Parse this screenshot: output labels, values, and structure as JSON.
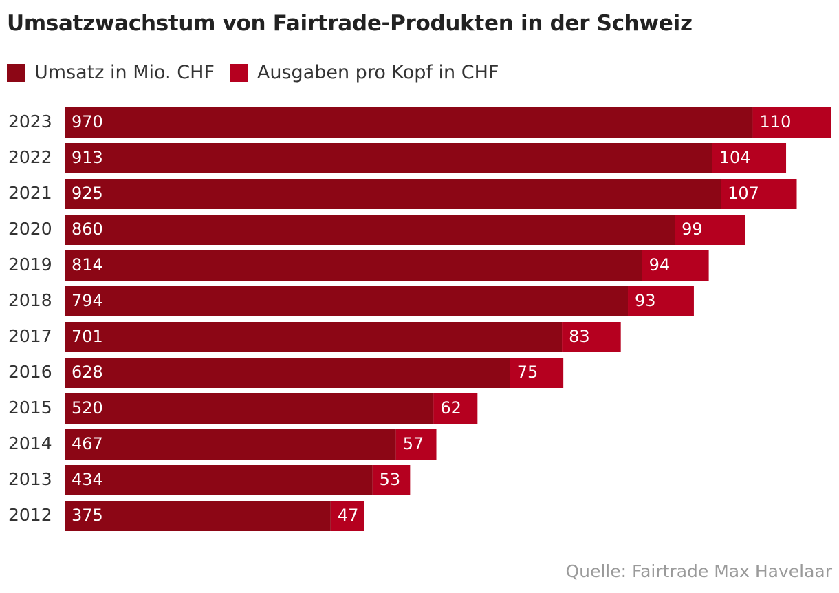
{
  "title": "Umsatzwachstum von Fairtrade-Produkten in der Schweiz",
  "legend": [
    {
      "label": "Umsatz in Mio. CHF",
      "color": "#8c0615"
    },
    {
      "label": "Ausgaben pro Kopf in CHF",
      "color": "#b5001f"
    }
  ],
  "source": "Quelle: Fairtrade Max Havelaar",
  "chart_data": {
    "type": "bar",
    "orientation": "horizontal",
    "stacked": true,
    "categories": [
      "2023",
      "2022",
      "2021",
      "2020",
      "2019",
      "2018",
      "2017",
      "2016",
      "2015",
      "2014",
      "2013",
      "2012"
    ],
    "series": [
      {
        "name": "Umsatz in Mio. CHF",
        "color": "#8c0615",
        "values": [
          970,
          913,
          925,
          860,
          814,
          794,
          701,
          628,
          520,
          467,
          434,
          375
        ]
      },
      {
        "name": "Ausgaben pro Kopf in CHF",
        "color": "#b5001f",
        "values": [
          110,
          104,
          107,
          99,
          94,
          93,
          83,
          75,
          62,
          57,
          53,
          47
        ]
      }
    ],
    "title": "Umsatzwachstum von Fairtrade-Produkten in der Schweiz",
    "xlabel": "",
    "ylabel": "",
    "xlim": [
      0,
      1080
    ],
    "grid": false,
    "legend_position": "top-left"
  }
}
